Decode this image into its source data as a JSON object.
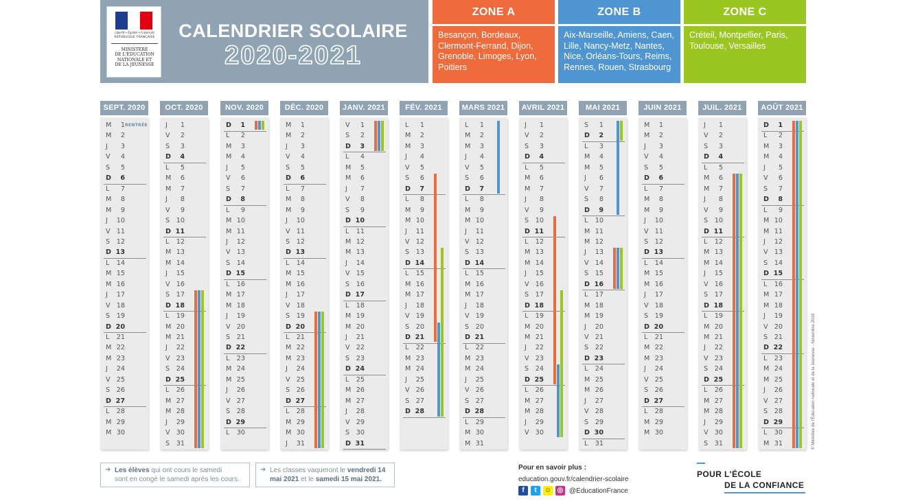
{
  "header": {
    "logo": {
      "republique_line1": "Liberté • Égalité • Fraternité",
      "republique_line2": "RÉPUBLIQUE FRANÇAISE",
      "ministere": [
        "MINISTÈRE",
        "DE L'ÉDUCATION",
        "NATIONALE ET",
        "DE LA JEUNESSE"
      ]
    },
    "title": "CALENDRIER SCOLAIRE",
    "year": "2020-2021"
  },
  "zones": [
    {
      "key": "A",
      "label": "ZONE A",
      "color": "#ef6b3b",
      "body_color": "#ef6b3b",
      "cities": [
        "Besançon, Bordeaux,",
        "Clermont-Ferrand, Dijon,",
        "Grenoble, Limoges, Lyon,",
        "Poitiers"
      ]
    },
    {
      "key": "B",
      "label": "ZONE B",
      "color": "#4f95d1",
      "body_color": "#4f95d1",
      "cities": [
        "Aix-Marseille, Amiens, Caen,",
        "Lille, Nancy-Metz, Nantes,",
        "Nice, Orléans-Tours, Reims,",
        "Rennes, Rouen, Strasbourg"
      ]
    },
    {
      "key": "C",
      "label": "ZONE C",
      "color": "#9bc51f",
      "body_color": "#9bc51f",
      "cities": [
        "Créteil, Montpellier, Paris,",
        "Toulouse, Versailles"
      ]
    }
  ],
  "months": [
    {
      "name": "SEPT. 2020",
      "first_weekday": "M",
      "days": 30,
      "rentree_label": "RENTRÉE",
      "holidays": []
    },
    {
      "name": "OCT. 2020",
      "first_weekday": "J",
      "days": 31,
      "holidays": [
        {
          "zone": "A",
          "from": 17,
          "to": 31
        },
        {
          "zone": "B",
          "from": 17,
          "to": 31
        },
        {
          "zone": "C",
          "from": 17,
          "to": 31
        }
      ]
    },
    {
      "name": "NOV. 2020",
      "first_weekday": "D",
      "days": 30,
      "holidays": [
        {
          "zone": "A",
          "from": 1,
          "to": 1
        },
        {
          "zone": "B",
          "from": 1,
          "to": 1
        },
        {
          "zone": "C",
          "from": 1,
          "to": 1
        }
      ]
    },
    {
      "name": "DÉC. 2020",
      "first_weekday": "M",
      "days": 31,
      "holidays": [
        {
          "zone": "A",
          "from": 19,
          "to": 31
        },
        {
          "zone": "B",
          "from": 19,
          "to": 31
        },
        {
          "zone": "C",
          "from": 19,
          "to": 31
        }
      ]
    },
    {
      "name": "JANV. 2021",
      "first_weekday": "V",
      "days": 31,
      "holidays": [
        {
          "zone": "A",
          "from": 1,
          "to": 3
        },
        {
          "zone": "B",
          "from": 1,
          "to": 3
        },
        {
          "zone": "C",
          "from": 1,
          "to": 3
        }
      ]
    },
    {
      "name": "FÉV. 2021",
      "first_weekday": "L",
      "days": 28,
      "holidays": [
        {
          "zone": "A",
          "from": 6,
          "to": 21
        },
        {
          "zone": "C",
          "from": 13,
          "to": 28
        },
        {
          "zone": "B",
          "from": 20,
          "to": 28
        }
      ]
    },
    {
      "name": "MARS 2021",
      "first_weekday": "L",
      "days": 31,
      "holidays": [
        {
          "zone": "B",
          "from": 1,
          "to": 7
        }
      ]
    },
    {
      "name": "AVRIL 2021",
      "first_weekday": "J",
      "days": 30,
      "holidays": [
        {
          "zone": "A",
          "from": 10,
          "to": 25
        },
        {
          "zone": "C",
          "from": 17,
          "to": 30
        },
        {
          "zone": "B",
          "from": 24,
          "to": 30
        }
      ]
    },
    {
      "name": "MAI 2021",
      "first_weekday": "S",
      "days": 31,
      "holidays": [
        {
          "zone": "C",
          "from": 1,
          "to": 2
        },
        {
          "zone": "B",
          "from": 1,
          "to": 9
        },
        {
          "zone": "A",
          "from": 13,
          "to": 16
        },
        {
          "zone": "B",
          "from": 13,
          "to": 16
        },
        {
          "zone": "C",
          "from": 13,
          "to": 16
        }
      ]
    },
    {
      "name": "JUIN 2021",
      "first_weekday": "M",
      "days": 30,
      "holidays": []
    },
    {
      "name": "JUIL. 2021",
      "first_weekday": "J",
      "days": 31,
      "holidays": [
        {
          "zone": "A",
          "from": 6,
          "to": 31
        },
        {
          "zone": "B",
          "from": 6,
          "to": 31
        },
        {
          "zone": "C",
          "from": 6,
          "to": 31
        }
      ]
    },
    {
      "name": "AOÛT 2021",
      "first_weekday": "D",
      "days": 31,
      "holidays": [
        {
          "zone": "A",
          "from": 1,
          "to": 31
        },
        {
          "zone": "B",
          "from": 1,
          "to": 31
        },
        {
          "zone": "C",
          "from": 1,
          "to": 31
        }
      ]
    }
  ],
  "weekday_letters": [
    "L",
    "M",
    "M",
    "J",
    "V",
    "S",
    "D"
  ],
  "notes": [
    {
      "parts": [
        {
          "b": "Les élèves"
        },
        {
          "t": " qui ont cours le samedi"
        },
        {
          "br": true
        },
        {
          "t": "sont en congé le samedi après les cours."
        }
      ]
    },
    {
      "parts": [
        {
          "t": "Les classes vaqueront le "
        },
        {
          "b": "vendredi 14"
        },
        {
          "br": true
        },
        {
          "b": "mai 2021"
        },
        {
          "t": " et le "
        },
        {
          "b": "samedi 15 mai 2021."
        }
      ]
    }
  ],
  "footer": {
    "info_title": "Pour en savoir plus :",
    "url": "education.gouv.fr/calendrier-scolaire",
    "social_icons": [
      "facebook-icon",
      "twitter-icon",
      "snapchat-icon",
      "instagram-icon"
    ],
    "handle": "@EducationFrance",
    "slogan_line1": "POUR L'ÉCOLE",
    "slogan_line2": "DE LA CONFIANCE",
    "copyright": "© Ministère de l'Éducation nationale et de la Jeunesse - Novembre 2019"
  }
}
